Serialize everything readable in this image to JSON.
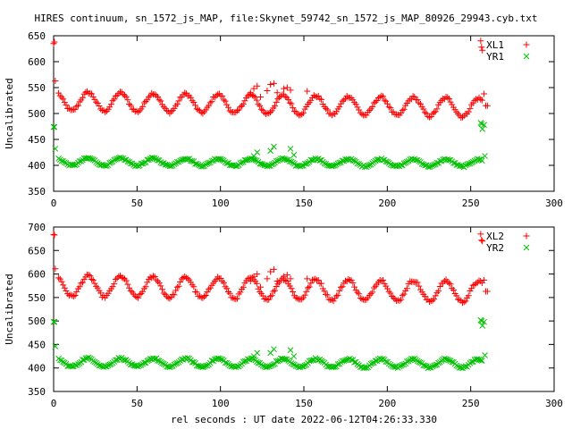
{
  "chart_data": [
    {
      "type": "scatter",
      "title": "HIRES continuum, sn_1572_js_MAP, file:Skynet_59742_sn_1572_js_MAP_80926_29943.cyb.txt",
      "xlabel": "",
      "ylabel": "Uncalibrated",
      "xlim": [
        0,
        300
      ],
      "ylim": [
        350,
        650
      ],
      "xticks": [
        0,
        50,
        100,
        150,
        200,
        250,
        300
      ],
      "yticks": [
        350,
        400,
        450,
        500,
        550,
        600,
        650
      ],
      "legend_position": "top-right",
      "series": [
        {
          "name": "XL1",
          "marker": "+",
          "color": "#ff0000",
          "wave": {
            "base": 524,
            "amp": 18,
            "trend": -0.05,
            "period": 19.5,
            "phase": 1.2,
            "noise": 2.5
          },
          "extra": [
            [
              0,
              635
            ],
            [
              0.5,
              638
            ],
            [
              1,
              563
            ],
            [
              256,
              640
            ],
            [
              256.5,
              628
            ],
            [
              257,
              622
            ],
            [
              258,
              538
            ],
            [
              259,
              515
            ],
            [
              260,
              515
            ],
            [
              118,
              540
            ],
            [
              120,
              548
            ],
            [
              122,
              553
            ],
            [
              124,
              532
            ],
            [
              128,
              544
            ],
            [
              130,
              556
            ],
            [
              132,
              558
            ],
            [
              134,
              540
            ],
            [
              138,
              548
            ],
            [
              140,
              550
            ],
            [
              142,
              545
            ],
            [
              152,
              543
            ]
          ]
        },
        {
          "name": "YR1",
          "marker": "x",
          "color": "#00c000",
          "wave": {
            "base": 407,
            "amp": 7,
            "trend": -0.01,
            "period": 19.5,
            "phase": 1.2,
            "noise": 1.5
          },
          "extra": [
            [
              0,
              474
            ],
            [
              0.5,
              474
            ],
            [
              1,
              432
            ],
            [
              256,
              482
            ],
            [
              256.5,
              480
            ],
            [
              257,
              470
            ],
            [
              258,
              478
            ],
            [
              258.5,
              418
            ],
            [
              120,
              418
            ],
            [
              122,
              425
            ],
            [
              130,
              428
            ],
            [
              132,
              436
            ],
            [
              142,
              432
            ],
            [
              144,
              420
            ]
          ]
        }
      ]
    },
    {
      "type": "scatter",
      "title": "",
      "xlabel": "rel seconds : UT date 2022-06-12T04:26:33.330",
      "ylabel": "Uncalibrated",
      "xlim": [
        0,
        300
      ],
      "ylim": [
        350,
        700
      ],
      "xticks": [
        0,
        50,
        100,
        150,
        200,
        250,
        300
      ],
      "yticks": [
        350,
        400,
        450,
        500,
        550,
        600,
        650,
        700
      ],
      "legend_position": "top-right",
      "series": [
        {
          "name": "XL2",
          "marker": "+",
          "color": "#ff0000",
          "wave": {
            "base": 575,
            "amp": 22,
            "trend": -0.05,
            "period": 19.5,
            "phase": 1.2,
            "noise": 3
          },
          "extra": [
            [
              0,
              684
            ],
            [
              0.5,
              683
            ],
            [
              1,
              611
            ],
            [
              256,
              685
            ],
            [
              256.5,
              672
            ],
            [
              257,
              670
            ],
            [
              258,
              587
            ],
            [
              259,
              563
            ],
            [
              260,
              563
            ],
            [
              118,
              585
            ],
            [
              120,
              595
            ],
            [
              122,
              600
            ],
            [
              124,
              572
            ],
            [
              128,
              590
            ],
            [
              130,
              605
            ],
            [
              132,
              610
            ],
            [
              134,
              585
            ],
            [
              138,
              595
            ],
            [
              140,
              598
            ],
            [
              142,
              590
            ],
            [
              152,
              590
            ]
          ]
        },
        {
          "name": "YR2",
          "marker": "x",
          "color": "#00c000",
          "wave": {
            "base": 412,
            "amp": 9,
            "trend": -0.01,
            "period": 19.5,
            "phase": 1.2,
            "noise": 1.8
          },
          "extra": [
            [
              0,
              498
            ],
            [
              0.5,
              498
            ],
            [
              1,
              446
            ],
            [
              256,
              502
            ],
            [
              256.5,
              500
            ],
            [
              257,
              490
            ],
            [
              258,
              498
            ],
            [
              258.5,
              427
            ],
            [
              120,
              425
            ],
            [
              122,
              432
            ],
            [
              130,
              432
            ],
            [
              132,
              440
            ],
            [
              142,
              438
            ],
            [
              144,
              425
            ]
          ]
        }
      ]
    }
  ]
}
